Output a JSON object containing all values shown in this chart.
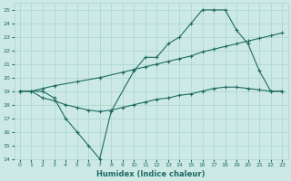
{
  "xlabel": "Humidex (Indice chaleur)",
  "xlim": [
    -0.5,
    23.5
  ],
  "ylim": [
    14,
    25.5
  ],
  "yticks": [
    14,
    15,
    16,
    17,
    18,
    19,
    20,
    21,
    22,
    23,
    24,
    25
  ],
  "xticks": [
    0,
    1,
    2,
    3,
    4,
    5,
    6,
    7,
    8,
    9,
    10,
    11,
    12,
    13,
    14,
    15,
    16,
    17,
    18,
    19,
    20,
    21,
    22,
    23
  ],
  "bg_color": "#cce9e5",
  "grid_color": "#aad4cf",
  "line_color": "#1e6b62",
  "line1_x": [
    0,
    1,
    2,
    3,
    4,
    5,
    6,
    7,
    8,
    10,
    11,
    12,
    13,
    14,
    15,
    16,
    17,
    18,
    19,
    20,
    21,
    22,
    23
  ],
  "line1_y": [
    19,
    19,
    19,
    18.5,
    17,
    16,
    15,
    14,
    17.5,
    20.5,
    21.5,
    21.5,
    22.5,
    23,
    24,
    25,
    25,
    25,
    23.5,
    22.5,
    20.5,
    19,
    19
  ],
  "line2_x": [
    0,
    1,
    2,
    3,
    5,
    7,
    9,
    10,
    11,
    12,
    13,
    14,
    15,
    16,
    17,
    18,
    19,
    20,
    21,
    22,
    23
  ],
  "line2_y": [
    19.0,
    19.0,
    19.2,
    19.4,
    19.7,
    20.0,
    20.4,
    20.6,
    20.8,
    21.0,
    21.2,
    21.4,
    21.6,
    21.9,
    22.1,
    22.3,
    22.5,
    22.7,
    22.9,
    23.1,
    23.3
  ],
  "line3_x": [
    0,
    1,
    2,
    3,
    4,
    5,
    6,
    7,
    8,
    9,
    10,
    11,
    12,
    13,
    14,
    15,
    16,
    17,
    18,
    19,
    20,
    21,
    22,
    23
  ],
  "line3_y": [
    19.0,
    19.0,
    18.5,
    18.3,
    18.0,
    17.8,
    17.6,
    17.5,
    17.6,
    17.8,
    18.0,
    18.2,
    18.4,
    18.5,
    18.7,
    18.8,
    19.0,
    19.2,
    19.3,
    19.3,
    19.2,
    19.1,
    19.0,
    19.0
  ]
}
